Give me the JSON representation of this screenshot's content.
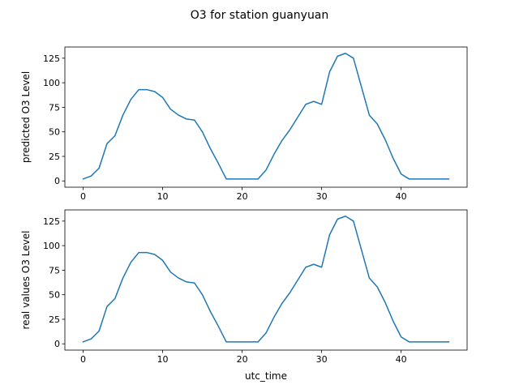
{
  "figure": {
    "suptitle": "O3 for station guanyuan"
  },
  "chart_data": [
    {
      "type": "line",
      "title": "",
      "xlabel": "",
      "ylabel": "predicted O3 Level",
      "xlim": [
        -2.3,
        48.3
      ],
      "ylim": [
        -6.4,
        136.4
      ],
      "xticks": [
        0,
        10,
        20,
        30,
        40
      ],
      "yticks": [
        0,
        25,
        50,
        75,
        100,
        125
      ],
      "grid": false,
      "color": "#1f77b4",
      "series": [
        {
          "x": [
            0,
            1,
            2,
            3,
            4,
            5,
            6,
            7,
            8,
            9,
            10,
            11,
            12,
            13,
            14,
            15,
            16,
            17,
            18,
            19,
            20,
            21,
            22,
            23,
            24,
            25,
            26,
            27,
            28,
            29,
            30,
            31,
            32,
            33,
            34,
            35,
            36,
            37,
            38,
            39,
            40,
            41,
            42,
            43,
            44,
            45,
            46
          ],
          "values": [
            2,
            5,
            13,
            38,
            46,
            67,
            83,
            93,
            93,
            91,
            85,
            73,
            67,
            63,
            62,
            50,
            33,
            18,
            2,
            2,
            2,
            2,
            2,
            11,
            27,
            41,
            52,
            65,
            78,
            81,
            78,
            111,
            127,
            130,
            125,
            96,
            67,
            58,
            42,
            23,
            7,
            2,
            2,
            2,
            2,
            2,
            2
          ]
        }
      ]
    },
    {
      "type": "line",
      "title": "",
      "xlabel": "utc_time",
      "ylabel": "real values O3 Level",
      "xlim": [
        -2.3,
        48.3
      ],
      "ylim": [
        -6.4,
        136.4
      ],
      "xticks": [
        0,
        10,
        20,
        30,
        40
      ],
      "yticks": [
        0,
        25,
        50,
        75,
        100,
        125
      ],
      "grid": false,
      "color": "#1f77b4",
      "series": [
        {
          "x": [
            0,
            1,
            2,
            3,
            4,
            5,
            6,
            7,
            8,
            9,
            10,
            11,
            12,
            13,
            14,
            15,
            16,
            17,
            18,
            19,
            20,
            21,
            22,
            23,
            24,
            25,
            26,
            27,
            28,
            29,
            30,
            31,
            32,
            33,
            34,
            35,
            36,
            37,
            38,
            39,
            40,
            41,
            42,
            43,
            44,
            45,
            46
          ],
          "values": [
            2,
            5,
            13,
            38,
            46,
            67,
            83,
            93,
            93,
            91,
            85,
            73,
            67,
            63,
            62,
            50,
            33,
            18,
            2,
            2,
            2,
            2,
            2,
            11,
            27,
            41,
            52,
            65,
            78,
            81,
            78,
            111,
            127,
            130,
            125,
            96,
            67,
            58,
            42,
            23,
            7,
            2,
            2,
            2,
            2,
            2,
            2
          ]
        }
      ]
    }
  ]
}
